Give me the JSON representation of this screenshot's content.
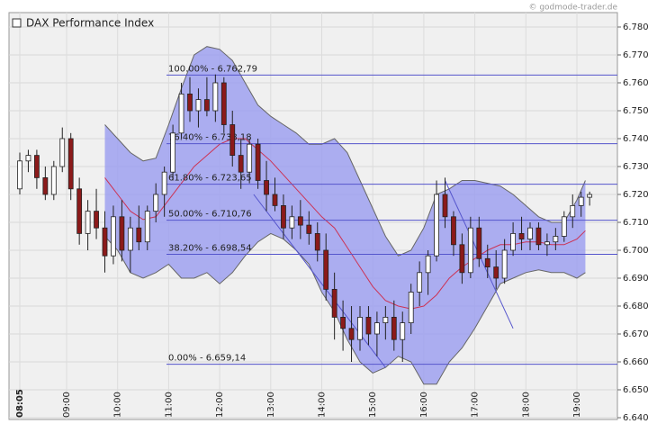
{
  "chart_data": {
    "type": "candlestick",
    "title": "DAX Performance Index",
    "source": "© godmode-trader.de",
    "x": [
      "08:05",
      "08:15",
      "08:25",
      "08:35",
      "08:45",
      "08:55",
      "09:05",
      "09:15",
      "09:25",
      "09:35",
      "09:45",
      "09:55",
      "10:05",
      "10:15",
      "10:25",
      "10:35",
      "10:45",
      "10:55",
      "11:05",
      "11:15",
      "11:25",
      "11:35",
      "11:45",
      "11:55",
      "12:05",
      "12:15",
      "12:25",
      "12:35",
      "12:45",
      "12:55",
      "13:05",
      "13:15",
      "13:25",
      "13:35",
      "13:45",
      "13:55",
      "14:05",
      "14:15",
      "14:25",
      "14:35",
      "14:45",
      "14:55",
      "15:05",
      "15:15",
      "15:25",
      "15:35",
      "15:45",
      "15:55",
      "16:05",
      "16:15",
      "16:25",
      "16:35",
      "16:45",
      "16:55",
      "17:05",
      "17:15",
      "17:25",
      "17:35",
      "17:45",
      "17:55",
      "18:05",
      "18:15",
      "18:25",
      "18:35",
      "18:45",
      "18:55",
      "19:05",
      "19:15"
    ],
    "open": [
      6722,
      6732,
      6734,
      6726,
      6720,
      6730,
      6740,
      6722,
      6706,
      6714,
      6708,
      6698,
      6712,
      6700,
      6708,
      6703,
      6714,
      6720,
      6728,
      6742,
      6756,
      6750,
      6754,
      6750,
      6760,
      6745,
      6734,
      6728,
      6738,
      6725,
      6720,
      6716,
      6708,
      6712,
      6709,
      6706,
      6700,
      6686,
      6676,
      6672,
      6668,
      6676,
      6670,
      6674,
      6676,
      6668,
      6674,
      6685,
      6692,
      6698,
      6720,
      6712,
      6702,
      6692,
      6708,
      6697,
      6694,
      6690,
      6700,
      6706,
      6704,
      6708,
      6702,
      6703,
      6705,
      6712,
      6716,
      6719
    ],
    "high": [
      6735,
      6736,
      6736,
      6730,
      6732,
      6744,
      6742,
      6726,
      6718,
      6722,
      6714,
      6716,
      6718,
      6712,
      6716,
      6716,
      6724,
      6730,
      6745,
      6760,
      6762,
      6758,
      6762,
      6763,
      6762,
      6750,
      6740,
      6740,
      6740,
      6732,
      6726,
      6720,
      6716,
      6718,
      6714,
      6710,
      6706,
      6692,
      6682,
      6680,
      6680,
      6680,
      6678,
      6680,
      6682,
      6678,
      6688,
      6696,
      6700,
      6725,
      6726,
      6714,
      6706,
      6712,
      6712,
      6702,
      6700,
      6704,
      6710,
      6712,
      6710,
      6710,
      6706,
      6708,
      6714,
      6720,
      6721,
      6721
    ],
    "low": [
      6720,
      6728,
      6722,
      6718,
      6718,
      6728,
      6718,
      6702,
      6700,
      6704,
      6692,
      6695,
      6696,
      6692,
      6700,
      6700,
      6710,
      6712,
      6725,
      6740,
      6746,
      6744,
      6748,
      6746,
      6742,
      6730,
      6722,
      6724,
      6722,
      6714,
      6714,
      6704,
      6704,
      6704,
      6702,
      6696,
      6682,
      6668,
      6664,
      6660,
      6664,
      6666,
      6662,
      6668,
      6664,
      6660,
      6670,
      6680,
      6684,
      6696,
      6708,
      6698,
      6688,
      6690,
      6694,
      6690,
      6686,
      6688,
      6698,
      6700,
      6700,
      6700,
      6698,
      6700,
      6703,
      6708,
      6712,
      6716
    ],
    "close": [
      6732,
      6734,
      6726,
      6720,
      6730,
      6740,
      6722,
      6706,
      6714,
      6708,
      6698,
      6712,
      6700,
      6708,
      6703,
      6714,
      6720,
      6728,
      6742,
      6756,
      6750,
      6754,
      6750,
      6760,
      6745,
      6734,
      6728,
      6738,
      6725,
      6720,
      6716,
      6708,
      6712,
      6709,
      6706,
      6700,
      6686,
      6676,
      6672,
      6668,
      6676,
      6670,
      6674,
      6676,
      6668,
      6674,
      6685,
      6692,
      6698,
      6720,
      6712,
      6702,
      6692,
      6708,
      6697,
      6694,
      6690,
      6700,
      6706,
      6704,
      6708,
      6702,
      6703,
      6705,
      6712,
      6716,
      6719,
      6720
    ],
    "up_color": "#ffffff",
    "down_color": "#8b1a1a",
    "bands": {
      "x": [
        "09:45",
        "10:00",
        "10:15",
        "10:30",
        "10:45",
        "11:00",
        "11:15",
        "11:30",
        "11:45",
        "12:00",
        "12:15",
        "12:30",
        "12:45",
        "13:00",
        "13:15",
        "13:30",
        "13:45",
        "14:00",
        "14:15",
        "14:30",
        "14:45",
        "15:00",
        "15:15",
        "15:30",
        "15:45",
        "16:00",
        "16:15",
        "16:30",
        "16:45",
        "17:00",
        "17:15",
        "17:30",
        "17:45",
        "18:00",
        "18:15",
        "18:30",
        "18:45",
        "19:00",
        "19:10"
      ],
      "upper": [
        6745,
        6740,
        6735,
        6732,
        6733,
        6745,
        6758,
        6770,
        6773,
        6772,
        6768,
        6760,
        6752,
        6748,
        6745,
        6742,
        6738,
        6738,
        6740,
        6735,
        6725,
        6715,
        6705,
        6698,
        6700,
        6708,
        6720,
        6722,
        6725,
        6725,
        6724,
        6723,
        6720,
        6716,
        6712,
        6710,
        6710,
        6718,
        6725
      ],
      "middle": [
        6726,
        6720,
        6714,
        6711,
        6712,
        6718,
        6724,
        6730,
        6734,
        6738,
        6740,
        6740,
        6736,
        6732,
        6727,
        6722,
        6717,
        6712,
        6708,
        6701,
        6694,
        6687,
        6682,
        6680,
        6679,
        6680,
        6684,
        6690,
        6694,
        6697,
        6700,
        6702,
        6702,
        6703,
        6703,
        6702,
        6702,
        6704,
        6707
      ],
      "lower": [
        6705,
        6700,
        6692,
        6690,
        6692,
        6695,
        6690,
        6690,
        6692,
        6688,
        6692,
        6698,
        6703,
        6706,
        6704,
        6700,
        6695,
        6685,
        6678,
        6668,
        6660,
        6656,
        6658,
        6662,
        6660,
        6652,
        6652,
        6660,
        6665,
        6672,
        6680,
        6688,
        6690,
        6692,
        6693,
        6692,
        6692,
        6690,
        6692
      ],
      "fill": "#9a9cf0",
      "edge": "#666666",
      "middle_color": "#cc3355"
    },
    "fibonacci": [
      {
        "label": "100.00% - 6.762,79",
        "value": 6762.79
      },
      {
        "label": "76.40% - 6.738,18",
        "value": 6738.18
      },
      {
        "label": "61.80% - 6.723,65",
        "value": 6723.65
      },
      {
        "label": "50.00% - 6.710,76",
        "value": 6710.76
      },
      {
        "label": "38.20% - 6.698,54",
        "value": 6698.54
      },
      {
        "label": "0.00% - 6.659,14",
        "value": 6659.14
      }
    ],
    "fib_color": "#5555cc",
    "trendlines": [
      {
        "x": [
          "12:40",
          "15:15"
        ],
        "y": [
          6720,
          6658
        ]
      },
      {
        "x": [
          "16:25",
          "17:45"
        ],
        "y": [
          6725,
          6672
        ]
      }
    ],
    "ylim": [
      6640,
      6780
    ],
    "yticks": [
      {
        "value": 6640,
        "label": "6.640"
      },
      {
        "value": 6650,
        "label": "6.650"
      },
      {
        "value": 6660,
        "label": "6.660"
      },
      {
        "value": 6670,
        "label": "6.670"
      },
      {
        "value": 6680,
        "label": "6.680"
      },
      {
        "value": 6690,
        "label": "6.690"
      },
      {
        "value": 6700,
        "label": "6.700"
      },
      {
        "value": 6710,
        "label": "6.710"
      },
      {
        "value": 6720,
        "label": "6.720"
      },
      {
        "value": 6730,
        "label": "6.730"
      },
      {
        "value": 6740,
        "label": "6.740"
      },
      {
        "value": 6750,
        "label": "6.750"
      },
      {
        "value": 6760,
        "label": "6.760"
      },
      {
        "value": 6770,
        "label": "6.770"
      },
      {
        "value": 6780,
        "label": "6.780"
      }
    ],
    "xticks": [
      "08:05",
      "09:00",
      "10:00",
      "11:00",
      "12:00",
      "13:00",
      "14:00",
      "15:00",
      "16:00",
      "17:00",
      "18:00",
      "19:00"
    ],
    "grid": true
  }
}
